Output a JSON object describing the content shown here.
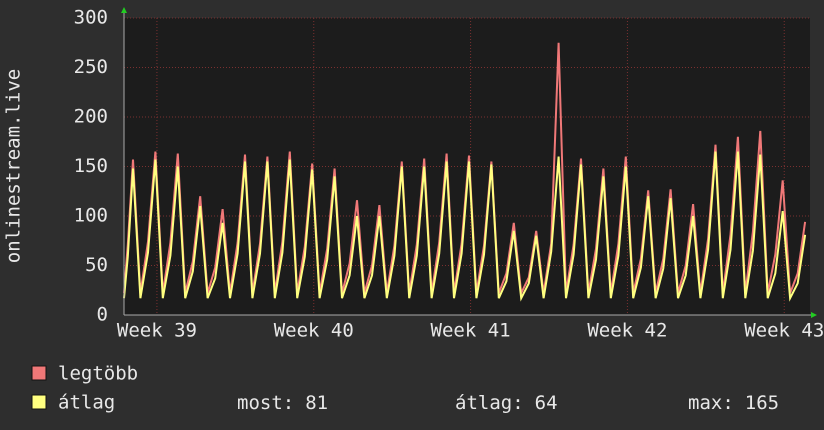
{
  "chart_data": {
    "type": "line",
    "ylabel": "onlinestream.live",
    "x": [
      -1.47,
      -1.3,
      -1.07,
      -0.74,
      -0.4,
      -0.07,
      0.26,
      0.6,
      0.93,
      1.26,
      1.6,
      1.93,
      2.26,
      2.6,
      2.93,
      3.26,
      3.6,
      3.93,
      4.26,
      4.6,
      4.93,
      5.26,
      5.6,
      5.93,
      6.26,
      6.6,
      6.93,
      7.26,
      7.6,
      7.93,
      8.26,
      8.6,
      8.93,
      9.26,
      9.6,
      9.93,
      10.26,
      10.6,
      10.93,
      11.26,
      11.6,
      11.93,
      12.26,
      12.6,
      12.93,
      13.26,
      13.6,
      13.93,
      14.26,
      14.6,
      14.93,
      15.26,
      15.6,
      15.93,
      16.26,
      16.6,
      16.93,
      17.26,
      17.6,
      17.93,
      18.26,
      18.6,
      18.93,
      19.26,
      19.6,
      19.93,
      20.26,
      20.6,
      20.93,
      21.26,
      21.6,
      21.93,
      22.26,
      22.6,
      22.93,
      23.26,
      23.6,
      23.93,
      24.26,
      24.6,
      24.93,
      25.26,
      25.6,
      25.93,
      26.26,
      26.6,
      26.93,
      27.26,
      27.6,
      27.93,
      28.26,
      28.6,
      28.93
    ],
    "series": [
      {
        "name": "legtöbb",
        "color": "#f07878",
        "values": [
          22,
          71,
          157,
          22,
          74,
          165,
          22,
          73,
          163,
          22,
          54,
          120,
          22,
          48,
          107,
          22,
          73,
          162,
          22,
          72,
          160,
          22,
          74,
          165,
          22,
          69,
          153,
          22,
          67,
          148,
          22,
          52,
          116,
          22,
          50,
          111,
          22,
          70,
          155,
          22,
          71,
          158,
          22,
          73,
          163,
          22,
          72,
          161,
          22,
          70,
          155,
          22,
          42,
          93,
          22,
          38,
          85,
          22,
          72,
          275,
          22,
          71,
          158,
          22,
          67,
          148,
          22,
          72,
          160,
          22,
          57,
          126,
          22,
          57,
          127,
          22,
          50,
          112,
          22,
          77,
          172,
          22,
          81,
          180,
          22,
          84,
          186,
          22,
          61,
          136,
          22,
          42,
          94
        ]
      },
      {
        "name": "átlag",
        "color": "#ffff80",
        "values": [
          17,
          59,
          148,
          17,
          63,
          157,
          17,
          60,
          150,
          17,
          44,
          110,
          17,
          37,
          93,
          17,
          62,
          155,
          17,
          62,
          155,
          17,
          63,
          157,
          17,
          59,
          147,
          17,
          56,
          140,
          17,
          40,
          100,
          17,
          40,
          100,
          17,
          60,
          150,
          17,
          60,
          150,
          17,
          62,
          155,
          17,
          62,
          155,
          17,
          61,
          152,
          17,
          34,
          85,
          17,
          32,
          80,
          17,
          64,
          160,
          17,
          61,
          152,
          17,
          56,
          140,
          17,
          60,
          150,
          17,
          48,
          120,
          17,
          47,
          118,
          17,
          40,
          100,
          17,
          66,
          165,
          17,
          66,
          165,
          17,
          65,
          162,
          17,
          42,
          105,
          17,
          32,
          81
        ]
      }
    ],
    "xlim": [
      -1.47,
      29.15
    ],
    "xticks": [
      {
        "value": 0,
        "label": "Week 39"
      },
      {
        "value": 7,
        "label": "Week 40"
      },
      {
        "value": 14,
        "label": "Week 41"
      },
      {
        "value": 21,
        "label": "Week 42"
      },
      {
        "value": 28,
        "label": "Week 43"
      }
    ],
    "ylim": [
      0,
      300
    ],
    "yticks": [
      0,
      50,
      100,
      150,
      200,
      250,
      300
    ],
    "grid": true,
    "stats": [
      {
        "label": "most:",
        "value": 81
      },
      {
        "label": "átlag:",
        "value": 64
      },
      {
        "label": "max:",
        "value": 165
      }
    ]
  }
}
